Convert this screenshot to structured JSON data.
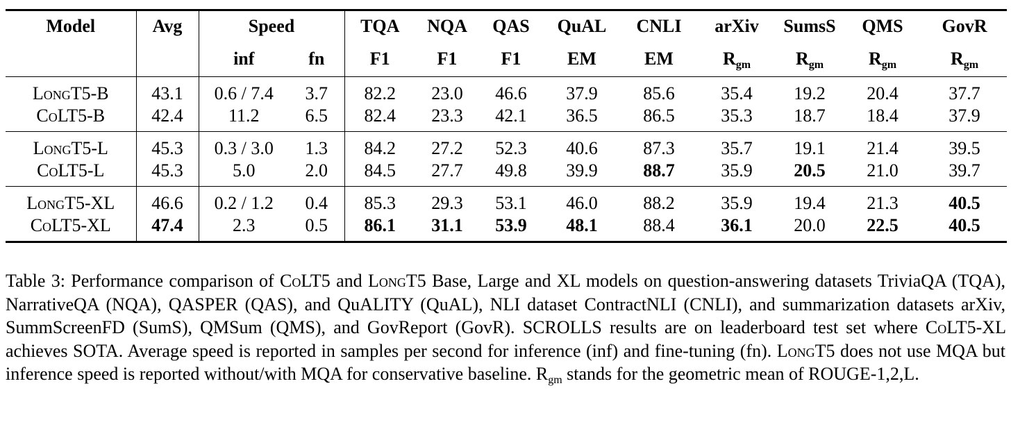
{
  "table": {
    "header": {
      "model": "Model",
      "avg": "Avg",
      "speed": "Speed",
      "datasets": [
        "TQA",
        "NQA",
        "QAS",
        "QuAL",
        "CNLI",
        "arXiv",
        "SumsS",
        "QMS",
        "GovR"
      ]
    },
    "subheader": {
      "speed_inf": "inf",
      "speed_fn": "fn",
      "metrics": [
        "F1",
        "F1",
        "F1",
        "EM",
        "EM",
        "R",
        "R",
        "R",
        "R"
      ],
      "metric_sub": "gm"
    },
    "rows": [
      {
        "model_prefix": "Long",
        "model_suffix": "T5-B",
        "avg": "43.1",
        "inf": "0.6 / 7.4",
        "fn": "3.7",
        "scores": [
          "82.2",
          "23.0",
          "46.6",
          "37.9",
          "85.6",
          "35.4",
          "19.2",
          "20.4",
          "37.7"
        ]
      },
      {
        "model_prefix": "Co",
        "model_suffix": "LT5-B",
        "avg": "42.4",
        "inf": "11.2",
        "fn": "6.5",
        "scores": [
          "82.4",
          "23.3",
          "42.1",
          "36.5",
          "86.5",
          "35.3",
          "18.7",
          "18.4",
          "37.9"
        ]
      },
      {
        "model_prefix": "Long",
        "model_suffix": "T5-L",
        "avg": "45.3",
        "inf": "0.3 / 3.0",
        "fn": "1.3",
        "scores": [
          "84.2",
          "27.2",
          "52.3",
          "40.6",
          "87.3",
          "35.7",
          "19.1",
          "21.4",
          "39.5"
        ]
      },
      {
        "model_prefix": "Co",
        "model_suffix": "LT5-L",
        "avg": "45.3",
        "inf": "5.0",
        "fn": "2.0",
        "scores": [
          "84.5",
          "27.7",
          "49.8",
          "39.9",
          "88.7",
          "35.9",
          "20.5",
          "21.0",
          "39.7"
        ]
      },
      {
        "model_prefix": "Long",
        "model_suffix": "T5-XL",
        "avg": "46.6",
        "inf": "0.2 / 1.2",
        "fn": "0.4",
        "scores": [
          "85.3",
          "29.3",
          "53.1",
          "46.0",
          "88.2",
          "35.9",
          "19.4",
          "21.3",
          "40.5"
        ]
      },
      {
        "model_prefix": "Co",
        "model_suffix": "LT5-XL",
        "avg": "47.4",
        "inf": "2.3",
        "fn": "0.5",
        "scores": [
          "86.1",
          "31.1",
          "53.9",
          "48.1",
          "88.4",
          "36.1",
          "20.0",
          "22.5",
          "40.5"
        ]
      }
    ]
  },
  "caption": {
    "p1": "Table 3: Performance comparison of ",
    "colt5_prefix": "Co",
    "colt5_suffix": "LT5",
    "p2": " and ",
    "longt5_prefix": "Long",
    "longt5_suffix": "T5",
    "p3": " Base, Large and XL models on question-answering datasets TriviaQA (TQA), NarrativeQA (NQA), QASPER (QAS), and QuALITY (QuAL), NLI dataset ContractNLI (CNLI), and summarization datasets arXiv, SummScreenFD (SumS), QMSum (QMS), and GovReport (GovR). SCROLLS results are on leaderboard test set where ",
    "colt5xl_suffix": "LT5-XL",
    "p4": " achieves SOTA. Average speed is reported in samples per second for inference (inf) and fine-tuning (fn). ",
    "p5": " does not use MQA but inference speed is reported without/with MQA for conservative baseline. R",
    "p5_sub": "gm",
    "p6": " stands for the geometric mean of ROUGE-1,2,L."
  }
}
